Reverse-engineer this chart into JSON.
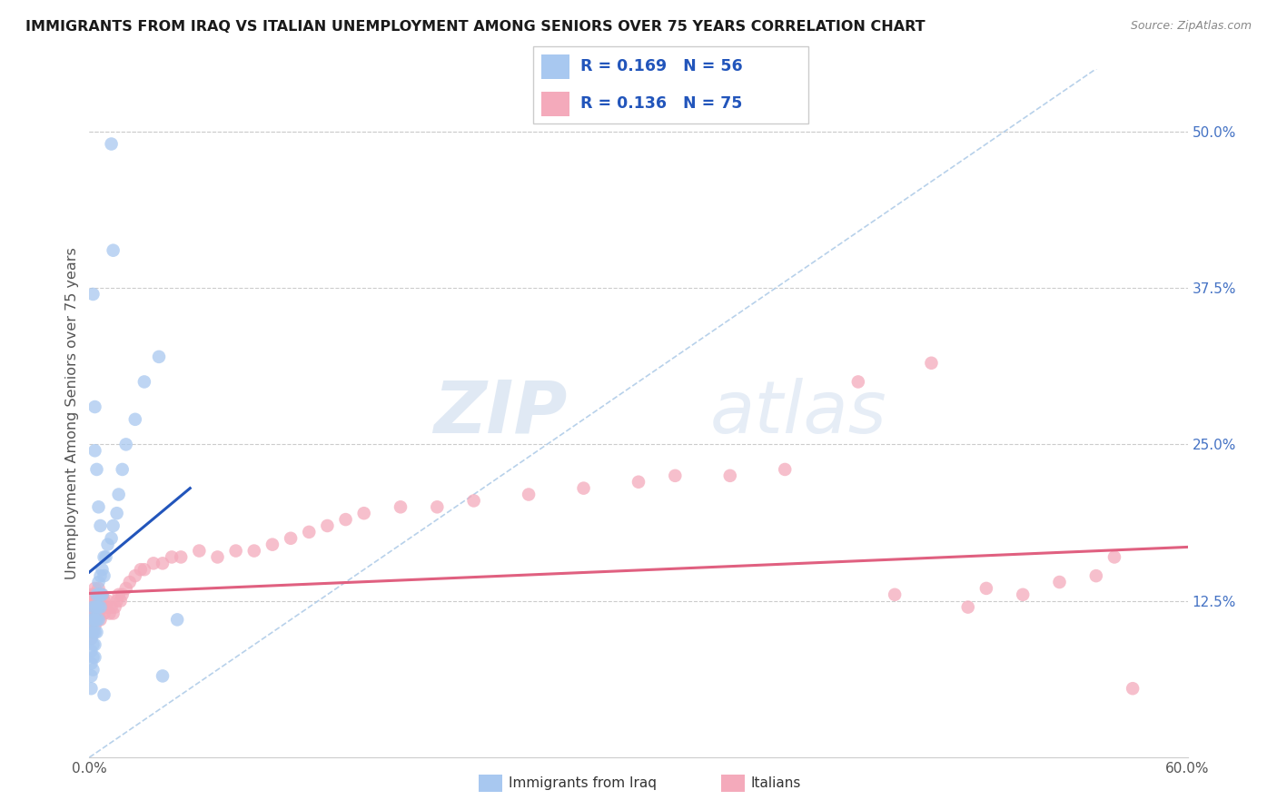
{
  "title": "IMMIGRANTS FROM IRAQ VS ITALIAN UNEMPLOYMENT AMONG SENIORS OVER 75 YEARS CORRELATION CHART",
  "source": "Source: ZipAtlas.com",
  "ylabel": "Unemployment Among Seniors over 75 years",
  "xlim": [
    0.0,
    0.6
  ],
  "ylim": [
    0.0,
    0.55
  ],
  "xtick_left_label": "0.0%",
  "xtick_right_label": "60.0%",
  "yticks_right": [
    0.125,
    0.25,
    0.375,
    0.5
  ],
  "ytick_labels_right": [
    "12.5%",
    "25.0%",
    "37.5%",
    "50.0%"
  ],
  "legend_label1": "Immigrants from Iraq",
  "legend_label2": "Italians",
  "r1": 0.169,
  "n1": 56,
  "r2": 0.136,
  "n2": 75,
  "color_blue": "#A8C8F0",
  "color_pink": "#F4AABB",
  "color_blue_line": "#2255BB",
  "color_pink_line": "#E06080",
  "color_dashed": "#B0CCE8",
  "watermark_zip": "ZIP",
  "watermark_atlas": "atlas",
  "blue_line_x": [
    0.0,
    0.055
  ],
  "blue_line_y": [
    0.148,
    0.215
  ],
  "pink_line_x": [
    0.0,
    0.6
  ],
  "pink_line_y": [
    0.131,
    0.168
  ],
  "blue_points_x": [
    0.001,
    0.001,
    0.001,
    0.001,
    0.001,
    0.001,
    0.001,
    0.002,
    0.002,
    0.002,
    0.002,
    0.002,
    0.002,
    0.003,
    0.003,
    0.003,
    0.003,
    0.003,
    0.004,
    0.004,
    0.004,
    0.004,
    0.005,
    0.005,
    0.005,
    0.005,
    0.006,
    0.006,
    0.006,
    0.007,
    0.007,
    0.008,
    0.008,
    0.009,
    0.01,
    0.012,
    0.013,
    0.015,
    0.016,
    0.018,
    0.02,
    0.025,
    0.03,
    0.038,
    0.048,
    0.012,
    0.013,
    0.008,
    0.04,
    0.002,
    0.003,
    0.003,
    0.004,
    0.005,
    0.006
  ],
  "blue_points_y": [
    0.055,
    0.065,
    0.075,
    0.085,
    0.095,
    0.1,
    0.11,
    0.07,
    0.08,
    0.09,
    0.1,
    0.11,
    0.12,
    0.08,
    0.09,
    0.1,
    0.11,
    0.12,
    0.1,
    0.11,
    0.12,
    0.13,
    0.11,
    0.12,
    0.13,
    0.14,
    0.12,
    0.13,
    0.145,
    0.13,
    0.15,
    0.145,
    0.16,
    0.16,
    0.17,
    0.175,
    0.185,
    0.195,
    0.21,
    0.23,
    0.25,
    0.27,
    0.3,
    0.32,
    0.11,
    0.49,
    0.405,
    0.05,
    0.065,
    0.37,
    0.28,
    0.245,
    0.23,
    0.2,
    0.185
  ],
  "pink_points_x": [
    0.001,
    0.001,
    0.001,
    0.001,
    0.001,
    0.002,
    0.002,
    0.002,
    0.002,
    0.003,
    0.003,
    0.003,
    0.003,
    0.004,
    0.004,
    0.004,
    0.005,
    0.005,
    0.005,
    0.006,
    0.006,
    0.006,
    0.007,
    0.007,
    0.008,
    0.008,
    0.009,
    0.01,
    0.011,
    0.012,
    0.013,
    0.014,
    0.015,
    0.016,
    0.017,
    0.018,
    0.02,
    0.022,
    0.025,
    0.028,
    0.03,
    0.035,
    0.04,
    0.045,
    0.05,
    0.06,
    0.07,
    0.08,
    0.09,
    0.1,
    0.11,
    0.12,
    0.13,
    0.14,
    0.15,
    0.17,
    0.19,
    0.21,
    0.24,
    0.27,
    0.3,
    0.32,
    0.35,
    0.38,
    0.42,
    0.46,
    0.49,
    0.51,
    0.53,
    0.55,
    0.56,
    0.57,
    0.44,
    0.48
  ],
  "pink_points_y": [
    0.095,
    0.105,
    0.115,
    0.12,
    0.13,
    0.1,
    0.11,
    0.12,
    0.13,
    0.105,
    0.115,
    0.125,
    0.135,
    0.11,
    0.12,
    0.13,
    0.115,
    0.125,
    0.135,
    0.11,
    0.12,
    0.13,
    0.12,
    0.13,
    0.115,
    0.125,
    0.12,
    0.125,
    0.115,
    0.12,
    0.115,
    0.12,
    0.125,
    0.13,
    0.125,
    0.13,
    0.135,
    0.14,
    0.145,
    0.15,
    0.15,
    0.155,
    0.155,
    0.16,
    0.16,
    0.165,
    0.16,
    0.165,
    0.165,
    0.17,
    0.175,
    0.18,
    0.185,
    0.19,
    0.195,
    0.2,
    0.2,
    0.205,
    0.21,
    0.215,
    0.22,
    0.225,
    0.225,
    0.23,
    0.3,
    0.315,
    0.135,
    0.13,
    0.14,
    0.145,
    0.16,
    0.055,
    0.13,
    0.12
  ]
}
